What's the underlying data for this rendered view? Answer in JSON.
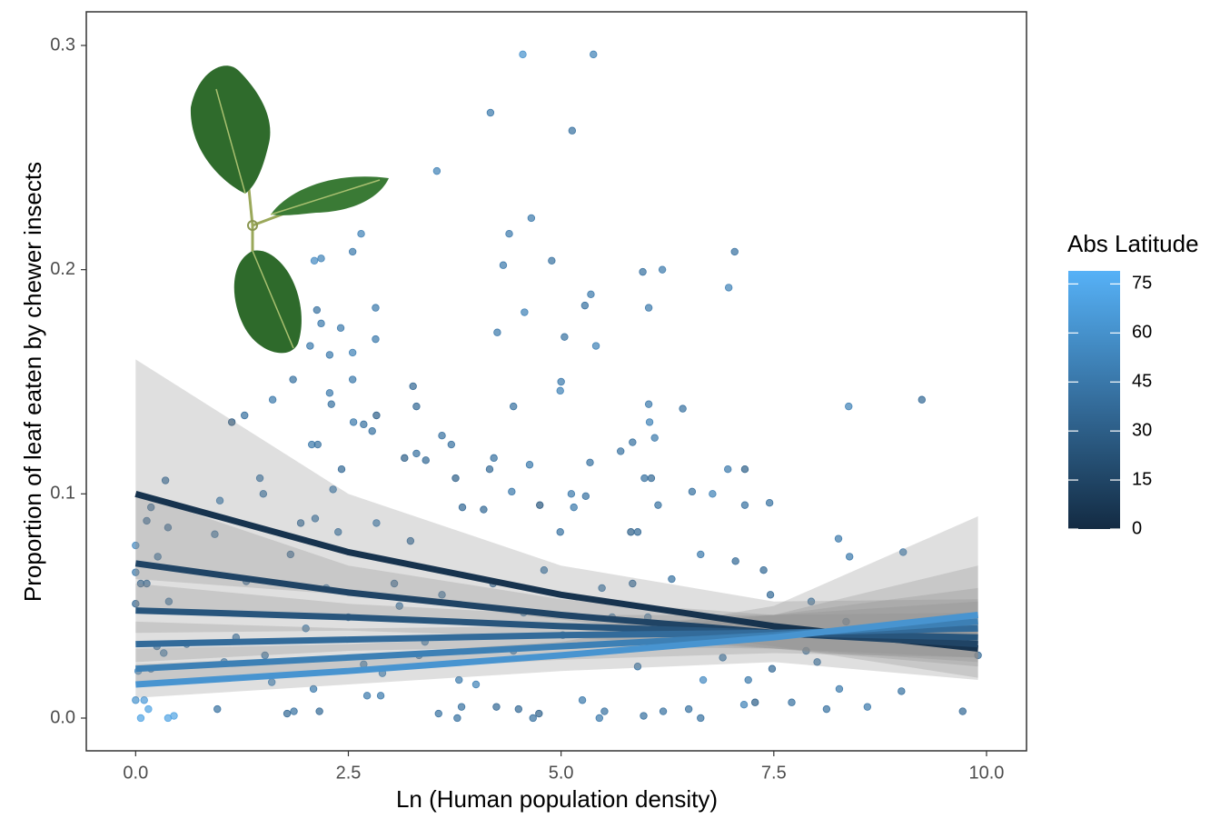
{
  "chart_data": {
    "type": "scatter",
    "xlabel": "Ln (Human population density)",
    "ylabel": "Proportion of leaf eaten by chewer insects",
    "xlim": [
      -0.58,
      10.47
    ],
    "ylim": [
      -0.0146,
      0.315
    ],
    "xticks": [
      {
        "value": 0,
        "label": "0.0"
      },
      2.5,
      {
        "value": 5,
        "label": "5.0"
      },
      7.5,
      {
        "value": 10,
        "label": "10.0"
      }
    ],
    "yticks": [
      {
        "value": 0,
        "label": "0.0"
      },
      0.1,
      0.2,
      0.3
    ],
    "points": {
      "x": [
        4.55,
        5.38,
        4.17,
        5.13,
        3.54,
        4.65,
        4.39,
        2.65,
        2.55,
        7.04,
        4.89,
        4.32,
        2.18,
        2.1,
        5.96,
        6.19,
        6.97,
        5.35,
        5.28,
        6.03,
        4.57,
        2.82,
        2.13,
        2.18,
        2.41,
        4.25,
        5.04,
        2.82,
        2.05,
        5.41,
        2.55,
        2.28,
        1.85,
        2.55,
        3.26,
        5.0,
        4.99,
        2.28,
        1.61,
        3.3,
        2.3,
        4.44,
        6.03,
        6.43,
        8.38,
        9.24,
        2.83,
        1.28,
        1.13,
        2.56,
        2.68,
        6.04,
        2.78,
        3.6,
        5.84,
        6.1,
        3.71,
        2.07,
        2.14,
        5.7,
        3.16,
        3.3,
        4.21,
        3.41,
        5.34,
        4.63,
        7.16,
        6.96,
        2.42,
        4.16,
        5.98,
        6.06,
        1.46,
        0.35,
        3.76,
        7.16,
        4.75,
        7.45,
        6.54,
        6.78,
        4.42,
        5.12,
        5.29,
        2.32,
        1.5,
        0.99,
        3.84,
        4.09,
        5.15,
        6.14,
        0.18,
        0.13,
        1.94,
        2.11,
        2.83,
        4.99,
        5.82,
        5.9,
        0.38,
        0.93,
        2.38,
        3.23,
        1.82,
        6.64,
        7.05,
        8.26,
        8.39,
        9.02,
        7.38,
        0.0,
        0.26,
        0.0,
        0.06,
        0.13,
        0.39,
        0.0,
        3.04,
        5.84,
        6.3,
        7.46,
        7.94,
        0.25,
        0.33,
        0.18,
        0.03,
        0.0,
        0.1,
        0.15,
        0.06,
        0.38,
        0.45,
        0.96,
        1.78,
        1.86,
        2.09,
        2.16,
        2.72,
        2.88,
        3.56,
        3.78,
        3.83,
        4.24,
        4.5,
        4.74,
        4.67,
        5.25,
        5.45,
        5.51,
        5.97,
        6.2,
        6.5,
        6.64,
        6.67,
        7.15,
        7.28,
        7.71,
        8.12,
        8.6,
        9.72,
        9.9,
        9.0,
        8.27,
        7.48,
        7.88,
        8.35,
        8.01,
        3.4,
        3.8,
        4.0,
        4.44,
        5.02,
        5.6,
        6.3,
        1.18,
        1.52,
        2.0,
        2.5,
        1.04,
        2.68,
        3.1,
        3.6,
        4.2,
        4.8,
        5.48,
        6.02,
        6.9,
        7.2,
        2.9,
        1.6,
        0.6,
        1.3,
        2.24,
        3.33,
        4.56,
        5.9,
        6.8
      ],
      "values": [
        0.296,
        0.296,
        0.27,
        0.262,
        0.244,
        0.223,
        0.216,
        0.216,
        0.208,
        0.208,
        0.204,
        0.202,
        0.205,
        0.204,
        0.199,
        0.2,
        0.192,
        0.189,
        0.184,
        0.183,
        0.181,
        0.183,
        0.182,
        0.176,
        0.174,
        0.172,
        0.17,
        0.169,
        0.166,
        0.166,
        0.163,
        0.162,
        0.151,
        0.151,
        0.148,
        0.15,
        0.146,
        0.145,
        0.142,
        0.139,
        0.14,
        0.139,
        0.14,
        0.138,
        0.139,
        0.142,
        0.135,
        0.135,
        0.132,
        0.132,
        0.131,
        0.132,
        0.128,
        0.126,
        0.123,
        0.125,
        0.122,
        0.122,
        0.122,
        0.119,
        0.116,
        0.118,
        0.116,
        0.115,
        0.114,
        0.113,
        0.111,
        0.111,
        0.111,
        0.111,
        0.107,
        0.107,
        0.107,
        0.106,
        0.107,
        0.095,
        0.095,
        0.096,
        0.101,
        0.1,
        0.101,
        0.1,
        0.099,
        0.102,
        0.1,
        0.097,
        0.094,
        0.093,
        0.094,
        0.095,
        0.094,
        0.088,
        0.087,
        0.089,
        0.087,
        0.083,
        0.083,
        0.083,
        0.085,
        0.082,
        0.083,
        0.079,
        0.073,
        0.073,
        0.07,
        0.08,
        0.072,
        0.074,
        0.066,
        0.077,
        0.072,
        0.065,
        0.06,
        0.06,
        0.052,
        0.051,
        0.06,
        0.06,
        0.062,
        0.055,
        0.052,
        0.032,
        0.029,
        0.022,
        0.021,
        0.008,
        0.008,
        0.004,
        0.0,
        0.0,
        0.001,
        0.004,
        0.002,
        0.003,
        0.013,
        0.003,
        0.01,
        0.01,
        0.002,
        0.0,
        0.005,
        0.005,
        0.004,
        0.002,
        0.0,
        0.008,
        0.0,
        0.003,
        0.001,
        0.003,
        0.004,
        0.0,
        0.017,
        0.006,
        0.007,
        0.007,
        0.004,
        0.005,
        0.003,
        0.028,
        0.012,
        0.013,
        0.022,
        0.03,
        0.043,
        0.025,
        0.034,
        0.017,
        0.015,
        0.03,
        0.037,
        0.045,
        0.04,
        0.036,
        0.028,
        0.04,
        0.045,
        0.025,
        0.024,
        0.05,
        0.055,
        0.06,
        0.066,
        0.058,
        0.045,
        0.027,
        0.017,
        0.02,
        0.016,
        0.033,
        0.061,
        0.058,
        0.028,
        0.047,
        0.023,
        0.039
      ],
      "latitude": [
        60,
        50,
        45,
        40,
        50,
        45,
        45,
        50,
        45,
        40,
        40,
        45,
        50,
        55,
        40,
        45,
        50,
        45,
        40,
        45,
        50,
        45,
        40,
        45,
        45,
        45,
        40,
        45,
        45,
        50,
        50,
        45,
        40,
        45,
        35,
        45,
        50,
        45,
        45,
        35,
        40,
        40,
        45,
        40,
        50,
        35,
        30,
        40,
        25,
        45,
        40,
        50,
        40,
        40,
        40,
        45,
        40,
        45,
        40,
        40,
        30,
        40,
        40,
        35,
        40,
        45,
        30,
        45,
        35,
        35,
        40,
        35,
        40,
        35,
        30,
        40,
        25,
        40,
        40,
        50,
        45,
        45,
        40,
        45,
        40,
        45,
        35,
        35,
        45,
        40,
        35,
        35,
        35,
        40,
        45,
        40,
        30,
        35,
        35,
        40,
        40,
        35,
        35,
        45,
        35,
        45,
        45,
        45,
        35,
        55,
        40,
        45,
        35,
        35,
        40,
        35,
        35,
        35,
        40,
        35,
        40,
        40,
        45,
        40,
        55,
        60,
        65,
        70,
        70,
        70,
        70,
        40,
        35,
        40,
        45,
        35,
        45,
        45,
        40,
        40,
        40,
        35,
        35,
        30,
        40,
        45,
        45,
        40,
        40,
        40,
        40,
        40,
        55,
        50,
        30,
        40,
        40,
        45,
        35,
        35,
        40,
        45,
        35,
        40,
        35,
        40,
        45,
        45,
        50,
        45,
        40,
        45,
        45,
        40,
        40,
        45,
        40,
        45,
        45,
        40,
        40,
        35,
        40,
        40,
        45,
        40,
        45,
        50,
        50,
        40,
        35,
        45,
        40,
        45,
        40,
        40
      ]
    },
    "fits": [
      {
        "color_value": 5,
        "x": [
          0,
          2.5,
          5,
          7.5,
          9.9
        ],
        "values": [
          0.1,
          0.074,
          0.055,
          0.041,
          0.031
        ],
        "upper": [
          0.16,
          0.1,
          0.068,
          0.052,
          0.053
        ],
        "lower": [
          0.062,
          0.055,
          0.044,
          0.032,
          0.018
        ]
      },
      {
        "color_value": 15,
        "x": [
          0,
          2.5,
          5,
          7.5,
          9.9
        ],
        "values": [
          0.069,
          0.056,
          0.046,
          0.038,
          0.033
        ],
        "upper": [
          0.1,
          0.068,
          0.053,
          0.046,
          0.047
        ],
        "lower": [
          0.047,
          0.046,
          0.04,
          0.031,
          0.023
        ]
      },
      {
        "color_value": 25,
        "x": [
          0,
          2.5,
          5,
          7.5,
          9.9
        ],
        "values": [
          0.048,
          0.045,
          0.041,
          0.038,
          0.036
        ],
        "upper": [
          0.06,
          0.051,
          0.046,
          0.046,
          0.052
        ],
        "lower": [
          0.038,
          0.039,
          0.036,
          0.031,
          0.025
        ]
      },
      {
        "color_value": 38,
        "x": [
          0,
          2.5,
          5,
          7.5,
          9.9
        ],
        "values": [
          0.033,
          0.035,
          0.037,
          0.038,
          0.04
        ],
        "upper": [
          0.043,
          0.04,
          0.041,
          0.046,
          0.058
        ],
        "lower": [
          0.025,
          0.03,
          0.032,
          0.031,
          0.027
        ]
      },
      {
        "color_value": 50,
        "x": [
          0,
          2.5,
          5,
          7.5,
          9.9
        ],
        "values": [
          0.022,
          0.027,
          0.032,
          0.037,
          0.043
        ],
        "upper": [
          0.031,
          0.033,
          0.037,
          0.046,
          0.068
        ],
        "lower": [
          0.016,
          0.021,
          0.026,
          0.029,
          0.027
        ]
      },
      {
        "color_value": 62,
        "x": [
          0,
          2.5,
          5,
          7.5,
          9.9
        ],
        "values": [
          0.015,
          0.021,
          0.028,
          0.036,
          0.046
        ],
        "upper": [
          0.024,
          0.028,
          0.034,
          0.05,
          0.09
        ],
        "lower": [
          0.009,
          0.015,
          0.021,
          0.025,
          0.017
        ]
      }
    ],
    "colorbar": {
      "title": "Abs Latitude",
      "lim": [
        0,
        79
      ],
      "ticks": [
        0,
        15,
        30,
        45,
        60,
        75
      ],
      "low_color": "#132b43",
      "high_color": "#56b1f7"
    },
    "ribbon_color": "#8c8c8c",
    "grid": false
  }
}
